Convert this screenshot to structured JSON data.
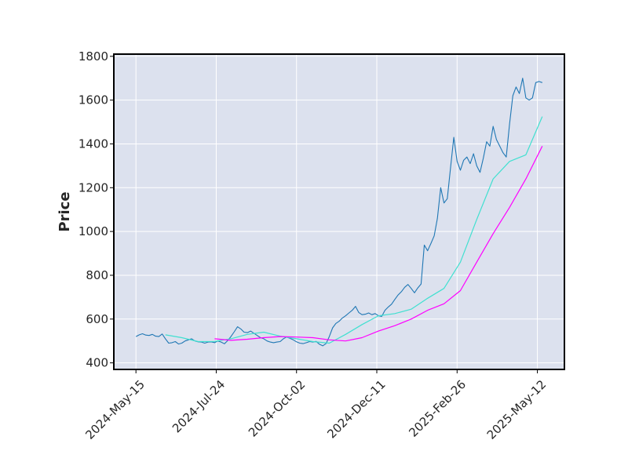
{
  "chart_data": {
    "type": "line",
    "title": "",
    "xlabel": "",
    "ylabel": "Price",
    "ylim": [
      370,
      1810
    ],
    "y_ticks": [
      400,
      600,
      800,
      1000,
      1200,
      1400,
      1600,
      1800
    ],
    "x_ticks": [
      "2024-May-15",
      "2024-Jul-24",
      "2024-Oct-02",
      "2024-Dec-11",
      "2025-Feb-26",
      "2025-May-12"
    ],
    "x_tick_positions": [
      0,
      49,
      98,
      147,
      196,
      245
    ],
    "xlim": [
      -13.5,
      261.5
    ],
    "grid": true,
    "legend": "none",
    "colors": {
      "background": "#dce1ee",
      "grid": "#ffffff",
      "price": "#1f77b4",
      "ma_fast": "#40e0d0",
      "ma_slow": "#ff00ff",
      "frame": "#000000"
    },
    "series": [
      {
        "style": "price",
        "x": [
          0,
          2,
          4,
          6,
          8,
          10,
          12,
          14,
          16,
          18,
          20,
          22,
          24,
          26,
          28,
          30,
          32,
          34,
          36,
          38,
          40,
          42,
          44,
          46,
          48,
          50,
          52,
          54,
          56,
          58,
          60,
          62,
          64,
          66,
          68,
          70,
          72,
          74,
          76,
          78,
          80,
          82,
          84,
          86,
          88,
          90,
          92,
          94,
          96,
          98,
          100,
          102,
          104,
          106,
          108,
          110,
          112,
          114,
          116,
          118,
          120,
          122,
          124,
          126,
          128,
          130,
          132,
          134,
          136,
          138,
          140,
          142,
          144,
          146,
          148,
          150,
          152,
          154,
          156,
          158,
          160,
          162,
          164,
          166,
          168,
          170,
          172,
          174,
          176,
          178,
          180,
          182,
          184,
          186,
          188,
          190,
          192,
          194,
          196,
          198,
          200,
          202,
          204,
          206,
          208,
          210,
          212,
          214,
          216,
          218,
          220,
          222,
          224,
          226,
          228,
          230,
          232,
          234,
          236,
          238,
          240,
          242,
          244,
          246,
          248
        ],
        "values": [
          520,
          528,
          533,
          527,
          525,
          530,
          522,
          520,
          532,
          510,
          490,
          492,
          497,
          486,
          490,
          500,
          505,
          510,
          500,
          496,
          495,
          490,
          495,
          496,
          492,
          500,
          495,
          487,
          502,
          520,
          542,
          565,
          555,
          540,
          538,
          545,
          535,
          525,
          515,
          510,
          500,
          495,
          492,
          495,
          497,
          510,
          518,
          512,
          505,
          496,
          490,
          488,
          492,
          497,
          495,
          498,
          485,
          478,
          488,
          520,
          560,
          580,
          590,
          605,
          615,
          628,
          640,
          658,
          630,
          620,
          622,
          628,
          620,
          625,
          615,
          612,
          640,
          655,
          668,
          690,
          710,
          725,
          745,
          758,
          740,
          720,
          742,
          760,
          938,
          912,
          945,
          980,
          1060,
          1200,
          1130,
          1150,
          1290,
          1430,
          1320,
          1280,
          1325,
          1340,
          1310,
          1355,
          1300,
          1270,
          1335,
          1410,
          1390,
          1480,
          1420,
          1390,
          1360,
          1340,
          1490,
          1620,
          1660,
          1630,
          1700,
          1610,
          1600,
          1610,
          1680,
          1685,
          1680
        ]
      },
      {
        "style": "ma_fast",
        "x": [
          18,
          28,
          38,
          48,
          58,
          68,
          78,
          88,
          98,
          108,
          118,
          128,
          138,
          148,
          158,
          168,
          178,
          188,
          198,
          208,
          218,
          228,
          238,
          248
        ],
        "values": [
          528,
          515,
          497,
          498,
          510,
          530,
          540,
          522,
          510,
          497,
          490,
          530,
          575,
          615,
          625,
          645,
          695,
          740,
          860,
          1055,
          1240,
          1320,
          1350,
          1525
        ]
      },
      {
        "style": "ma_slow",
        "x": [
          48,
          58,
          68,
          78,
          88,
          98,
          108,
          118,
          128,
          138,
          148,
          158,
          168,
          178,
          188,
          198,
          208,
          218,
          228,
          238,
          248
        ],
        "values": [
          510,
          503,
          508,
          515,
          520,
          518,
          515,
          505,
          500,
          515,
          545,
          570,
          600,
          640,
          670,
          730,
          860,
          990,
          1110,
          1240,
          1390
        ]
      }
    ]
  }
}
